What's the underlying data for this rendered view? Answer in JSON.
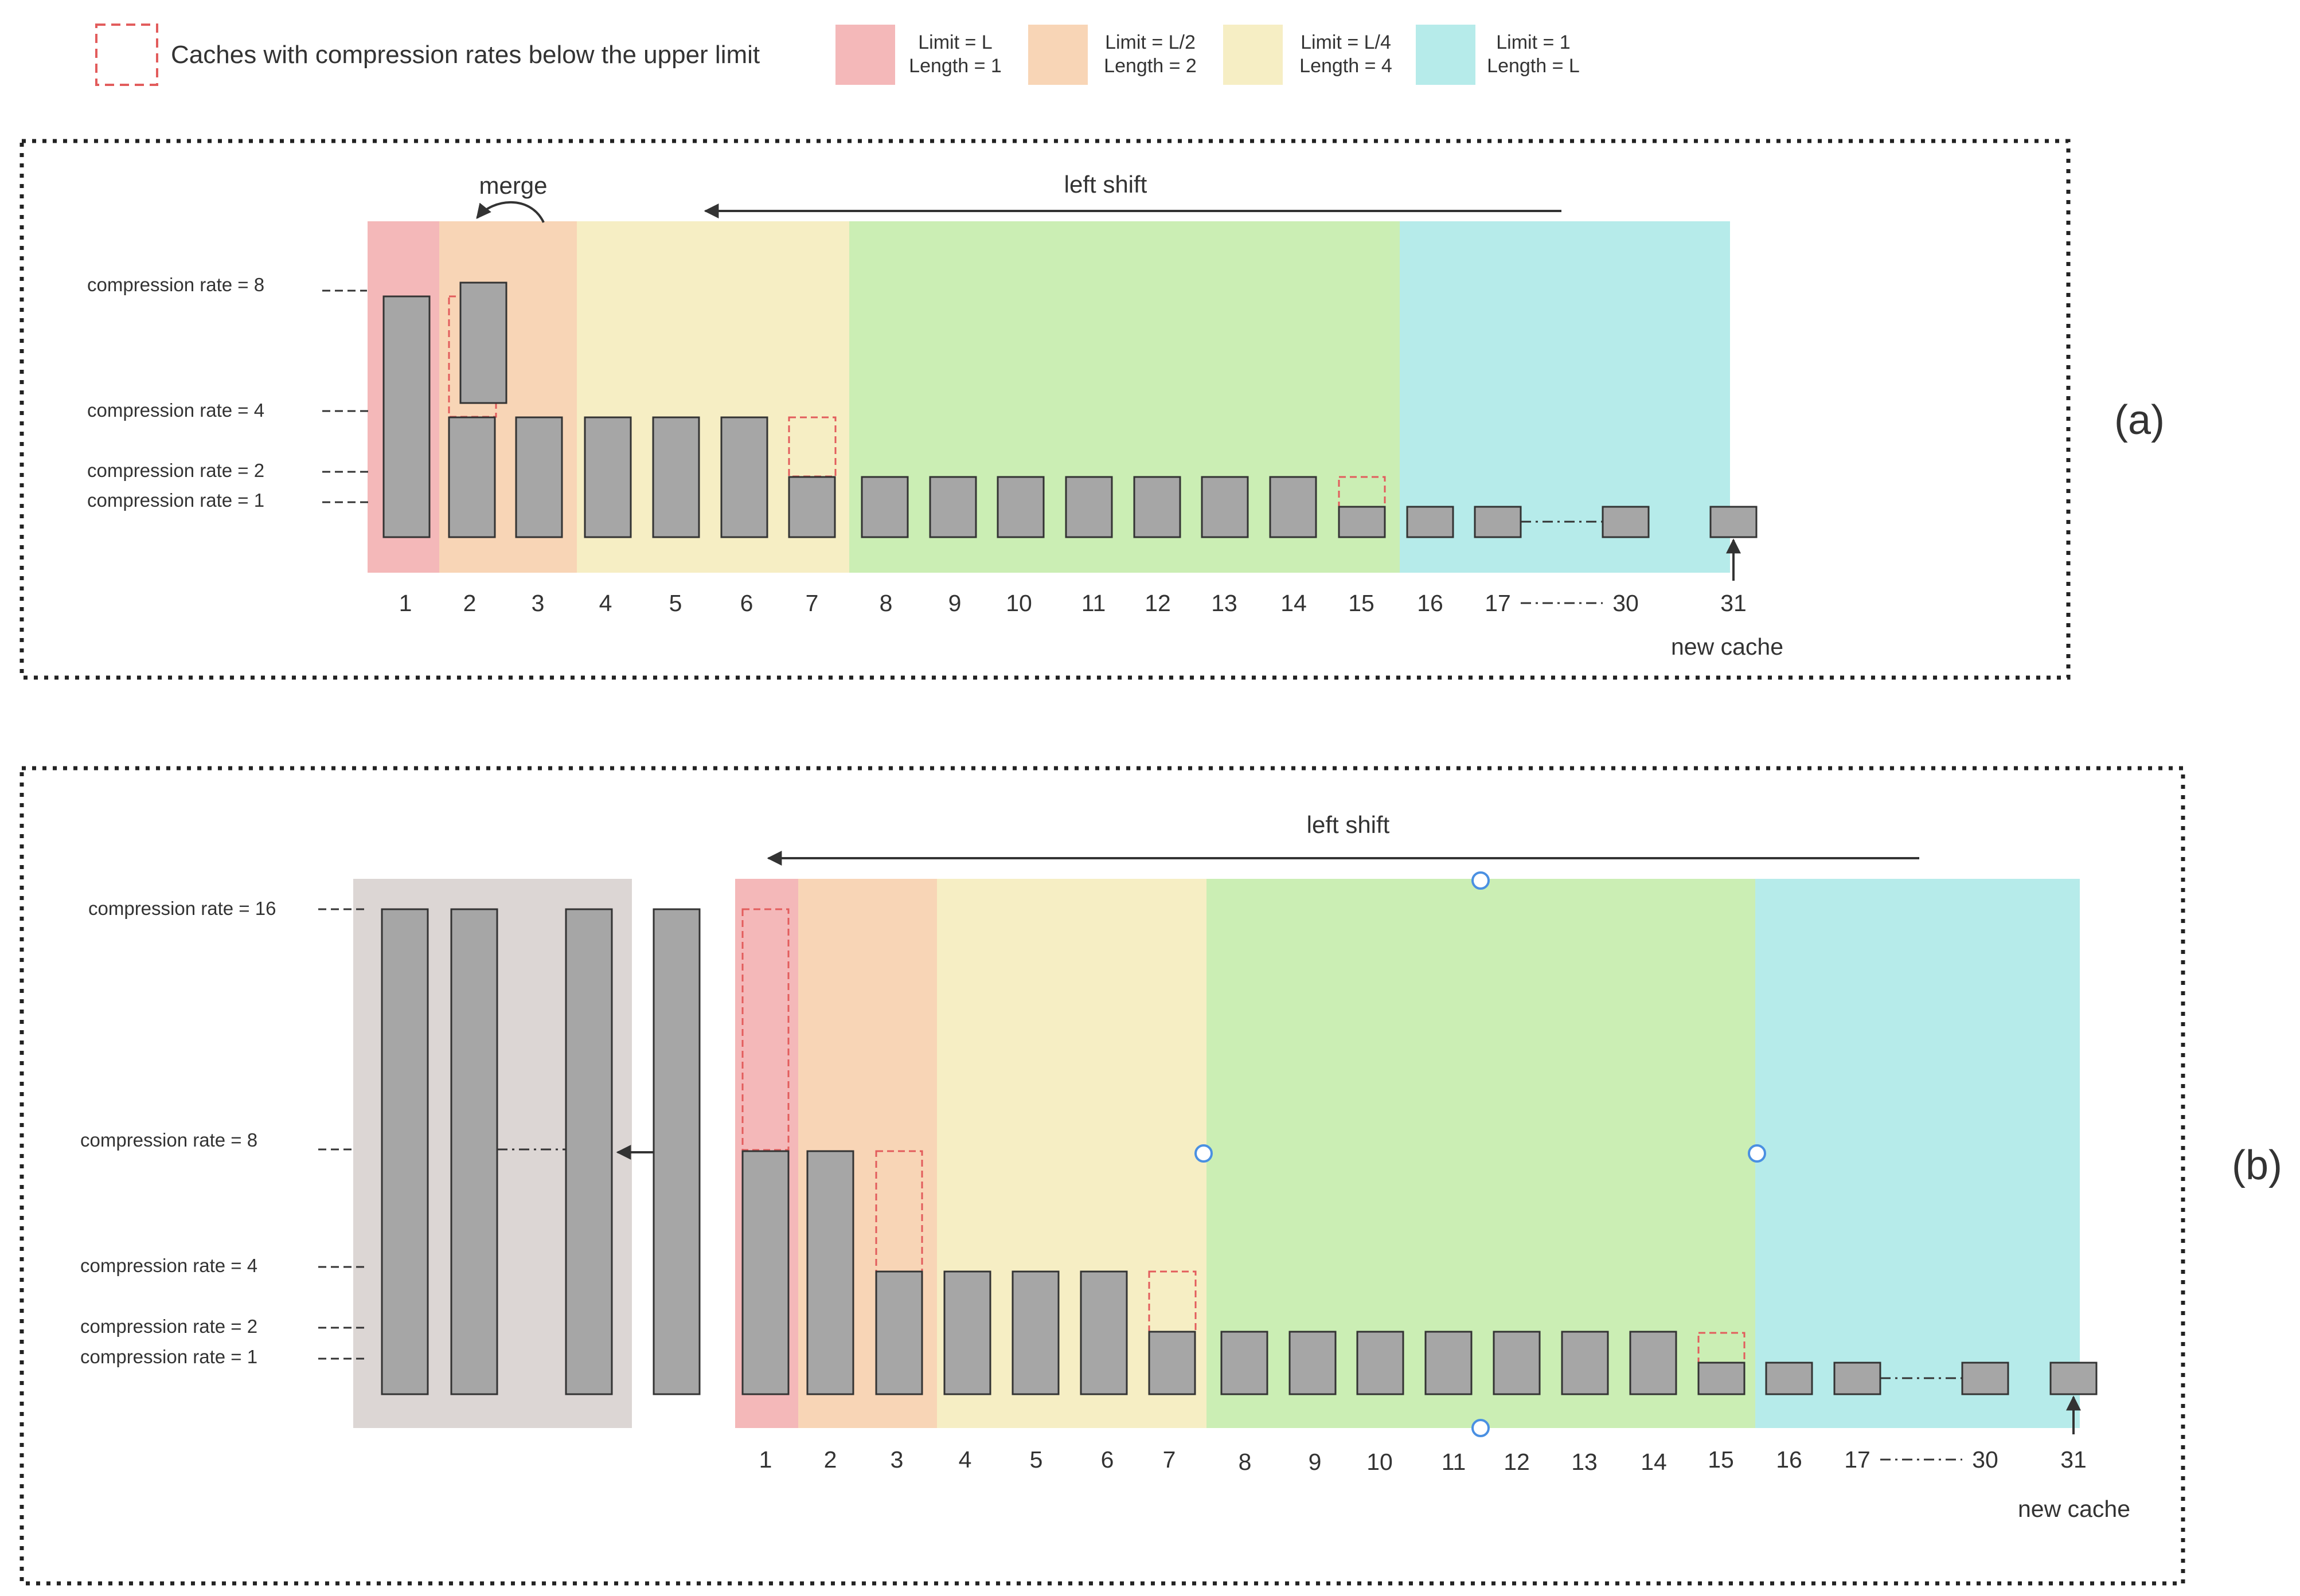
{
  "legend": {
    "dashed_label": "Caches with compression rates below the upper limit",
    "items": [
      {
        "line1": "Limit = L",
        "line2": "Length = 1",
        "color": "#f4b8b9"
      },
      {
        "line1": "Limit = L/2",
        "line2": "Length = 2",
        "color": "#f8d5b6"
      },
      {
        "line1": "Limit = L/4",
        "line2": "Length = 4",
        "color": "#f6eec4"
      },
      {
        "line1": "Limit = 1",
        "line2": "Length = L",
        "color": "#b6ebea"
      }
    ]
  },
  "colors": {
    "red": "#f4b8b9",
    "orange": "#f8d5b6",
    "yellow": "#f6eec4",
    "green": "#cbeeb4",
    "cyan": "#b6ebea",
    "gray_box": "#dcd6d4",
    "bar_fill": "#a6a6a6",
    "dashed": "#e25c5c",
    "marker": "#4a90e2"
  },
  "panel_a": {
    "label": "(a)",
    "merge_label": "merge",
    "shift_label": "left shift",
    "new_cache_label": "new cache",
    "rate_labels": [
      "compression rate = 8",
      "compression rate = 4",
      "compression rate = 2",
      "compression rate = 1"
    ],
    "x_labels": [
      "1",
      "2",
      "3",
      "4",
      "5",
      "6",
      "7",
      "8",
      "9",
      "10",
      "11",
      "12",
      "13",
      "14",
      "15",
      "16",
      "17",
      "30",
      "31"
    ]
  },
  "panel_b": {
    "label": "(b)",
    "shift_label": "left shift",
    "new_cache_label": "new cache",
    "rate_labels": [
      "compression rate = 16",
      "compression rate = 8",
      "compression rate = 4",
      "compression rate = 2",
      "compression rate = 1"
    ],
    "x_labels": [
      "1",
      "2",
      "3",
      "4",
      "5",
      "6",
      "7",
      "8",
      "9",
      "10",
      "11",
      "12",
      "13",
      "14",
      "15",
      "16",
      "17",
      "30",
      "31"
    ]
  }
}
